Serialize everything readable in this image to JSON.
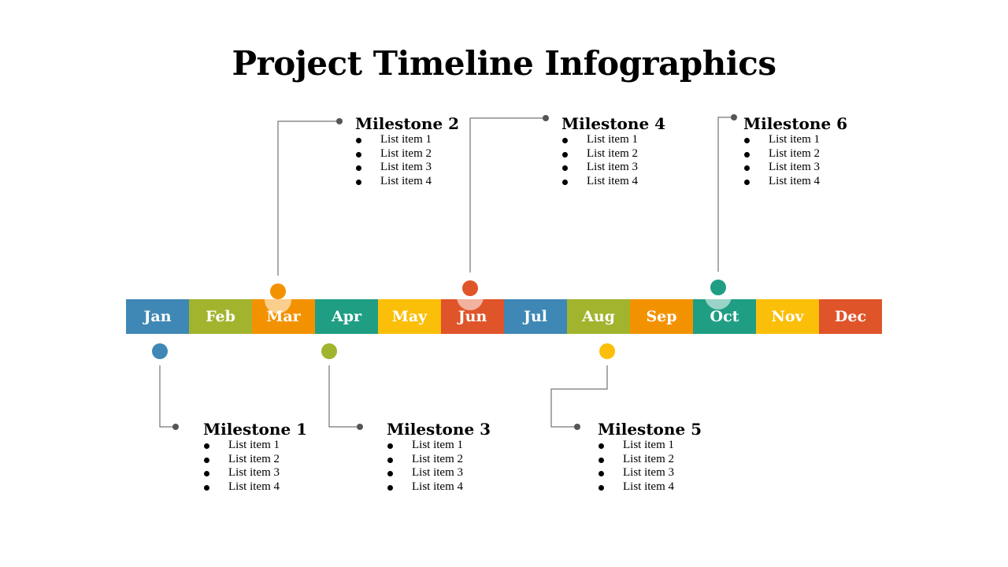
{
  "title": "Project Timeline Infographics",
  "months": [
    {
      "label": "Jan",
      "color": "#3f88b5"
    },
    {
      "label": "Feb",
      "color": "#a2b42e"
    },
    {
      "label": "Mar",
      "color": "#f39200"
    },
    {
      "label": "Apr",
      "color": "#1f9e84"
    },
    {
      "label": "May",
      "color": "#fbbf0a"
    },
    {
      "label": "Jun",
      "color": "#e0542a"
    },
    {
      "label": "Jul",
      "color": "#3f88b5"
    },
    {
      "label": "Aug",
      "color": "#a2b42e"
    },
    {
      "label": "Sep",
      "color": "#f39200"
    },
    {
      "label": "Oct",
      "color": "#1f9e84"
    },
    {
      "label": "Nov",
      "color": "#fbbf0a"
    },
    {
      "label": "Dec",
      "color": "#e0542a"
    }
  ],
  "milestones": [
    {
      "title": "Milestone 1",
      "items": [
        "List item 1",
        "List item 2",
        "List item 3",
        "List item 4"
      ],
      "color": "#3f88b5"
    },
    {
      "title": "Milestone 2",
      "items": [
        "List item 1",
        "List item 2",
        "List item 3",
        "List item 4"
      ],
      "color": "#f39200"
    },
    {
      "title": "Milestone 3",
      "items": [
        "List item 1",
        "List item 2",
        "List item 3",
        "List item 4"
      ],
      "color": "#a2b42e"
    },
    {
      "title": "Milestone 4",
      "items": [
        "List item 1",
        "List item 2",
        "List item 3",
        "List item 4"
      ],
      "color": "#e0542a"
    },
    {
      "title": "Milestone 5",
      "items": [
        "List item 1",
        "List item 2",
        "List item 3",
        "List item 4"
      ],
      "color": "#fbbf0a"
    },
    {
      "title": "Milestone 6",
      "items": [
        "List item 1",
        "List item 2",
        "List item 3",
        "List item 4"
      ],
      "color": "#1f9e84"
    }
  ]
}
